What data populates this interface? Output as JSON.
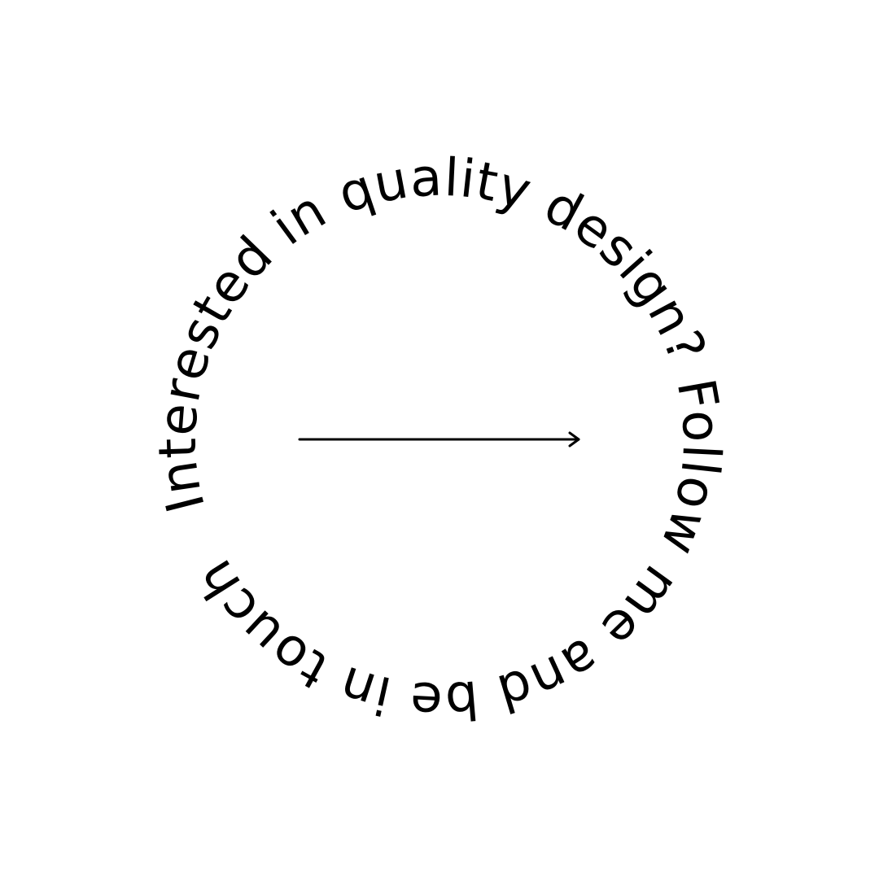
{
  "circular_text": "Interested in quality design? Follow me and be in touch",
  "arrow": {
    "name": "right-arrow-icon",
    "color": "#000000"
  },
  "colors": {
    "background": "#ffffff",
    "text": "#000000"
  }
}
